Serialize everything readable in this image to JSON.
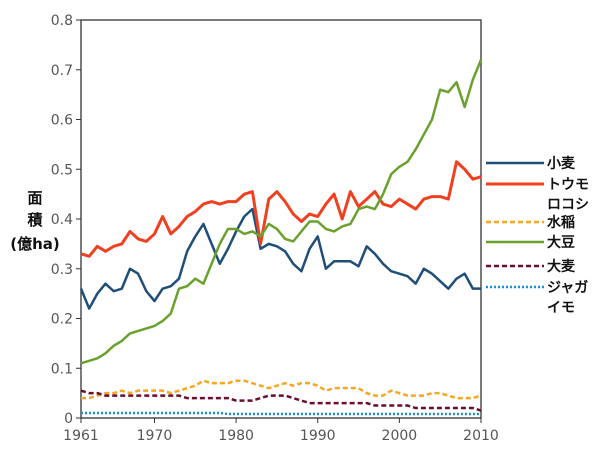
{
  "chart_data": {
    "type": "line",
    "ylabel_lines": [
      "面",
      "積",
      "(億ha)"
    ],
    "ylim": [
      0,
      0.8
    ],
    "yticks": [
      "0",
      "0.1",
      "0.2",
      "0.3",
      "0.4",
      "0.5",
      "0.6",
      "0.7",
      "0.8"
    ],
    "xlim": [
      1961,
      2010
    ],
    "xticks": [
      "1961",
      "1970",
      "1980",
      "1990",
      "2000",
      "2010"
    ],
    "grid": false,
    "legend_position": "right",
    "x": [
      1961,
      1962,
      1963,
      1964,
      1965,
      1966,
      1967,
      1968,
      1969,
      1970,
      1971,
      1972,
      1973,
      1974,
      1975,
      1976,
      1977,
      1978,
      1979,
      1980,
      1981,
      1982,
      1983,
      1984,
      1985,
      1986,
      1987,
      1988,
      1989,
      1990,
      1991,
      1992,
      1993,
      1994,
      1995,
      1996,
      1997,
      1998,
      1999,
      2000,
      2001,
      2002,
      2003,
      2004,
      2005,
      2006,
      2007,
      2008,
      2009,
      2010
    ],
    "series": [
      {
        "name": "小麦",
        "legend_lines": [
          "小麦"
        ],
        "color": "#1f4e79",
        "dash": "",
        "values": [
          0.26,
          0.22,
          0.25,
          0.27,
          0.255,
          0.26,
          0.3,
          0.29,
          0.255,
          0.235,
          0.26,
          0.265,
          0.28,
          0.335,
          0.365,
          0.39,
          0.35,
          0.31,
          0.34,
          0.375,
          0.405,
          0.42,
          0.34,
          0.35,
          0.345,
          0.335,
          0.31,
          0.295,
          0.34,
          0.365,
          0.3,
          0.315,
          0.315,
          0.315,
          0.305,
          0.345,
          0.33,
          0.31,
          0.295,
          0.29,
          0.285,
          0.27,
          0.3,
          0.29,
          0.275,
          0.26,
          0.28,
          0.29,
          0.26,
          0.26
        ]
      },
      {
        "name": "トウモロコシ",
        "legend_lines": [
          "トウモ",
          "ロコシ"
        ],
        "color": "#f04020",
        "dash": "",
        "values": [
          0.33,
          0.325,
          0.345,
          0.335,
          0.345,
          0.35,
          0.375,
          0.36,
          0.355,
          0.37,
          0.405,
          0.37,
          0.385,
          0.405,
          0.415,
          0.43,
          0.435,
          0.43,
          0.435,
          0.435,
          0.45,
          0.455,
          0.35,
          0.44,
          0.455,
          0.435,
          0.41,
          0.395,
          0.41,
          0.405,
          0.43,
          0.45,
          0.4,
          0.455,
          0.425,
          0.44,
          0.455,
          0.43,
          0.425,
          0.44,
          0.43,
          0.42,
          0.44,
          0.445,
          0.445,
          0.44,
          0.515,
          0.5,
          0.48,
          0.485
        ]
      },
      {
        "name": "水稲",
        "legend_lines": [
          "水稲"
        ],
        "color": "#f5a623",
        "dash": "5,3",
        "values": [
          0.04,
          0.04,
          0.045,
          0.05,
          0.05,
          0.055,
          0.05,
          0.055,
          0.055,
          0.055,
          0.055,
          0.05,
          0.055,
          0.06,
          0.065,
          0.075,
          0.07,
          0.07,
          0.07,
          0.075,
          0.075,
          0.07,
          0.065,
          0.06,
          0.065,
          0.07,
          0.065,
          0.07,
          0.07,
          0.065,
          0.055,
          0.06,
          0.06,
          0.06,
          0.06,
          0.05,
          0.045,
          0.045,
          0.055,
          0.05,
          0.045,
          0.045,
          0.045,
          0.05,
          0.05,
          0.045,
          0.04,
          0.04,
          0.04,
          0.045
        ]
      },
      {
        "name": "大豆",
        "legend_lines": [
          "大豆"
        ],
        "color": "#6aa12e",
        "dash": "",
        "values": [
          0.11,
          0.115,
          0.12,
          0.13,
          0.145,
          0.155,
          0.17,
          0.175,
          0.18,
          0.185,
          0.195,
          0.21,
          0.26,
          0.265,
          0.28,
          0.27,
          0.31,
          0.35,
          0.38,
          0.38,
          0.37,
          0.375,
          0.365,
          0.39,
          0.38,
          0.36,
          0.355,
          0.375,
          0.395,
          0.395,
          0.38,
          0.375,
          0.385,
          0.39,
          0.42,
          0.425,
          0.42,
          0.45,
          0.49,
          0.505,
          0.515,
          0.54,
          0.57,
          0.6,
          0.66,
          0.655,
          0.675,
          0.625,
          0.68,
          0.72
        ]
      },
      {
        "name": "大麦",
        "legend_lines": [
          "大麦"
        ],
        "color": "#6b0f2a",
        "dash": "5,3",
        "values": [
          0.055,
          0.05,
          0.05,
          0.045,
          0.045,
          0.045,
          0.045,
          0.045,
          0.045,
          0.045,
          0.045,
          0.045,
          0.045,
          0.04,
          0.04,
          0.04,
          0.04,
          0.04,
          0.04,
          0.035,
          0.035,
          0.035,
          0.04,
          0.045,
          0.045,
          0.045,
          0.04,
          0.035,
          0.03,
          0.03,
          0.03,
          0.03,
          0.03,
          0.03,
          0.03,
          0.03,
          0.025,
          0.025,
          0.025,
          0.025,
          0.025,
          0.02,
          0.02,
          0.02,
          0.02,
          0.02,
          0.02,
          0.02,
          0.02,
          0.015
        ]
      },
      {
        "name": "ジャガイモ",
        "legend_lines": [
          "ジャガ",
          "イモ"
        ],
        "color": "#1a8fcf",
        "dash": "2,2",
        "values": [
          0.01,
          0.01,
          0.01,
          0.01,
          0.01,
          0.01,
          0.01,
          0.01,
          0.01,
          0.01,
          0.01,
          0.01,
          0.01,
          0.01,
          0.01,
          0.01,
          0.01,
          0.01,
          0.008,
          0.008,
          0.008,
          0.008,
          0.008,
          0.008,
          0.008,
          0.008,
          0.008,
          0.008,
          0.008,
          0.008,
          0.008,
          0.008,
          0.008,
          0.008,
          0.008,
          0.008,
          0.008,
          0.008,
          0.008,
          0.008,
          0.008,
          0.008,
          0.008,
          0.008,
          0.008,
          0.008,
          0.008,
          0.008,
          0.008,
          0.008
        ]
      }
    ]
  }
}
